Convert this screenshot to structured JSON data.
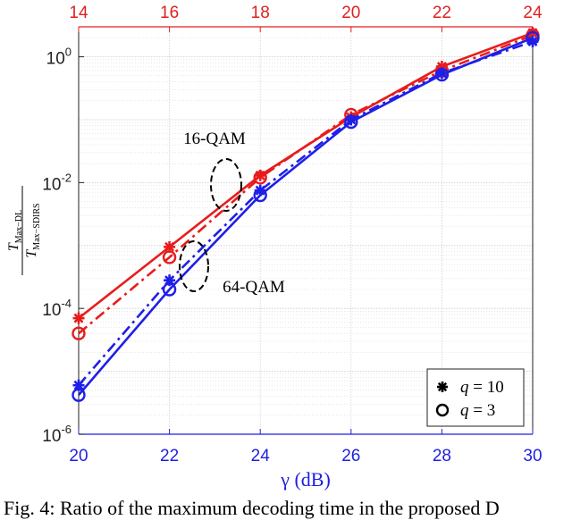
{
  "chart_data": {
    "type": "line",
    "x_bottom": {
      "label": "γ (dB)",
      "ticks": [
        20,
        22,
        24,
        26,
        28,
        30
      ],
      "range": [
        20,
        30
      ],
      "color": "#1f1fe0"
    },
    "x_top": {
      "ticks": [
        14,
        16,
        18,
        20,
        22,
        24
      ],
      "range": [
        14,
        24
      ],
      "color": "#e01f1f"
    },
    "y": {
      "label_num": "T",
      "label_num_sub": "Max−DL",
      "label_den": "T",
      "label_den_sub": "Max−SDIRS",
      "scale": "log",
      "range": [
        1e-06,
        3
      ],
      "ticks": [
        {
          "value": 1e-06,
          "base": "10",
          "exp": "-6"
        },
        {
          "value": 0.0001,
          "base": "10",
          "exp": "-4"
        },
        {
          "value": 0.01,
          "base": "10",
          "exp": "-2"
        },
        {
          "value": 1,
          "base": "10",
          "exp": "0"
        }
      ]
    },
    "grid": true,
    "series": [
      {
        "group": "16-QAM",
        "axis": "top",
        "color": "#e81c1c",
        "style": "solid",
        "marker": "star",
        "x": [
          14,
          16,
          18,
          20,
          22,
          24
        ],
        "y": [
          7e-05,
          0.00095,
          0.013,
          0.11,
          0.7,
          2.4
        ]
      },
      {
        "group": "16-QAM",
        "axis": "top",
        "color": "#e81c1c",
        "style": "dashdot",
        "marker": "circle",
        "x": [
          14,
          16,
          18,
          20,
          22,
          24
        ],
        "y": [
          4e-05,
          0.00065,
          0.012,
          0.12,
          0.6,
          2.2
        ]
      },
      {
        "group": "64-QAM",
        "axis": "bottom",
        "color": "#1f1fe8",
        "style": "dashdot",
        "marker": "star",
        "x": [
          20,
          22,
          24,
          26,
          28,
          30
        ],
        "y": [
          6e-06,
          0.00028,
          0.0075,
          0.1,
          0.55,
          1.75
        ]
      },
      {
        "group": "64-QAM",
        "axis": "bottom",
        "color": "#1f1fe8",
        "style": "solid",
        "marker": "circle",
        "x": [
          20,
          22,
          24,
          26,
          28,
          30
        ],
        "y": [
          4.2e-06,
          0.0002,
          0.0063,
          0.092,
          0.52,
          2.0
        ]
      }
    ],
    "annotations": [
      {
        "text": "16-QAM"
      },
      {
        "text": "64-QAM"
      }
    ],
    "legend": {
      "placement": "bottom-right",
      "entries": [
        {
          "marker": "star",
          "var": "q",
          "value": "= 10"
        },
        {
          "marker": "circle",
          "var": "q",
          "value": "= 3"
        }
      ]
    }
  },
  "caption": "Fig. 4: Ratio of the maximum decoding time in the proposed D"
}
